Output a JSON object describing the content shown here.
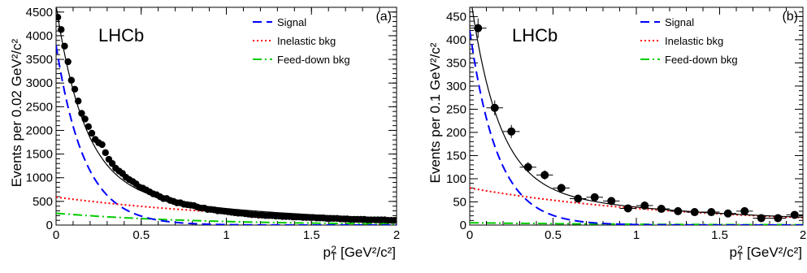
{
  "figure": {
    "name": "lhcb-pt2-fit-figure"
  },
  "chart_data": [
    {
      "type": "scatter",
      "panel_label": "(a)",
      "experiment_label": "LHCb",
      "xlabel": "p",
      "xlabel_sub": "T",
      "xlabel_sup": "2",
      "xlabel_unit": "[GeV²/c²]",
      "ylabel": "Events per 0.02 GeV²/c²",
      "xlim": [
        0,
        2
      ],
      "ylim": [
        0,
        4600
      ],
      "xticks": [
        0,
        0.5,
        1,
        1.5,
        2
      ],
      "xtick_labels": [
        "0",
        "0.5",
        "1",
        "1.5",
        "2"
      ],
      "yticks": [
        0,
        500,
        1000,
        1500,
        2000,
        2500,
        3000,
        3500,
        4000,
        4500
      ],
      "ytick_labels": [
        "0",
        "500",
        "1000",
        "1500",
        "2000",
        "2500",
        "3000",
        "3500",
        "4000",
        "4500"
      ],
      "legend": [
        "Signal",
        "Inelastic bkg",
        "Feed-down bkg"
      ],
      "legend_position": "top-right",
      "grid": false,
      "fit_model": {
        "signal": {
          "amplitude": 3800,
          "slope": 6.0
        },
        "inelastic_bkg": {
          "amplitude": 590,
          "slope": 0.8
        },
        "feed_down_bkg": {
          "amplitude": 250,
          "slope": 1.2
        }
      },
      "data_points": {
        "x": [
          0.01,
          0.03,
          0.05,
          0.07,
          0.09,
          0.11,
          0.13,
          0.15,
          0.17,
          0.19,
          0.21,
          0.23,
          0.25,
          0.27,
          0.29,
          0.31,
          0.33,
          0.35,
          0.37,
          0.39,
          0.41,
          0.43,
          0.45,
          0.47,
          0.49,
          0.51,
          0.53,
          0.55,
          0.57,
          0.59,
          0.61,
          0.63,
          0.65,
          0.67,
          0.69,
          0.71,
          0.73,
          0.75,
          0.77,
          0.79,
          0.81,
          0.83,
          0.85,
          0.87,
          0.89,
          0.91,
          0.93,
          0.95,
          0.97,
          0.99,
          1.01,
          1.03,
          1.05,
          1.07,
          1.09,
          1.11,
          1.13,
          1.15,
          1.17,
          1.19,
          1.21,
          1.23,
          1.25,
          1.27,
          1.29,
          1.31,
          1.33,
          1.35,
          1.37,
          1.39,
          1.41,
          1.43,
          1.45,
          1.47,
          1.49,
          1.51,
          1.53,
          1.55,
          1.57,
          1.59,
          1.61,
          1.63,
          1.65,
          1.67,
          1.69,
          1.71,
          1.73,
          1.75,
          1.77,
          1.79,
          1.81,
          1.83,
          1.85,
          1.87,
          1.89,
          1.91,
          1.93,
          1.95,
          1.97,
          1.99
        ],
        "y": [
          4390,
          4130,
          3780,
          3450,
          3060,
          2870,
          2620,
          2360,
          2240,
          2080,
          1940,
          1810,
          1740,
          1700,
          1530,
          1390,
          1300,
          1200,
          1140,
          1090,
          1010,
          960,
          920,
          870,
          800,
          780,
          740,
          700,
          660,
          640,
          600,
          560,
          560,
          520,
          500,
          470,
          470,
          440,
          430,
          420,
          410,
          380,
          360,
          360,
          330,
          330,
          320,
          300,
          300,
          290,
          280,
          270,
          260,
          250,
          250,
          240,
          230,
          220,
          220,
          210,
          210,
          200,
          200,
          200,
          190,
          190,
          180,
          180,
          180,
          170,
          170,
          170,
          160,
          160,
          160,
          160,
          150,
          150,
          150,
          140,
          140,
          140,
          140,
          130,
          130,
          130,
          120,
          120,
          120,
          120,
          120,
          110,
          110,
          110,
          110,
          110,
          110,
          100,
          100,
          100
        ]
      }
    },
    {
      "type": "scatter",
      "panel_label": "(b)",
      "experiment_label": "LHCb",
      "xlabel": "p",
      "xlabel_sub": "T",
      "xlabel_sup": "2",
      "xlabel_unit": "[GeV²/c²]",
      "ylabel": "Events per 0.1 GeV²/c²",
      "xlim": [
        0,
        2
      ],
      "ylim": [
        0,
        470
      ],
      "xticks": [
        0,
        0.5,
        1,
        1.5,
        2
      ],
      "xtick_labels": [
        "0",
        "0.5",
        "1",
        "1.5",
        "2"
      ],
      "yticks": [
        0,
        50,
        100,
        150,
        200,
        250,
        300,
        350,
        400,
        450
      ],
      "ytick_labels": [
        "0",
        "50",
        "100",
        "150",
        "200",
        "250",
        "300",
        "350",
        "400",
        "450"
      ],
      "legend": [
        "Signal",
        "Inelastic bkg",
        "Feed-down bkg"
      ],
      "legend_position": "top-right",
      "grid": false,
      "fit_model": {
        "signal": {
          "amplitude": 420,
          "slope": 6.0
        },
        "inelastic_bkg": {
          "amplitude": 80,
          "slope": 0.8
        },
        "feed_down_bkg": {
          "amplitude": 5,
          "slope": 1.0
        }
      },
      "data_points": {
        "x": [
          0.05,
          0.15,
          0.25,
          0.35,
          0.45,
          0.55,
          0.65,
          0.75,
          0.85,
          0.95,
          1.05,
          1.15,
          1.25,
          1.35,
          1.45,
          1.55,
          1.65,
          1.75,
          1.85,
          1.95
        ],
        "y": [
          425,
          253,
          202,
          125,
          108,
          80,
          57,
          60,
          52,
          36,
          42,
          35,
          30,
          28,
          28,
          25,
          30,
          15,
          15,
          22
        ],
        "yerr": [
          21,
          16,
          14,
          11,
          10,
          9,
          8,
          8,
          7,
          6,
          6,
          6,
          5,
          5,
          5,
          5,
          5,
          4,
          4,
          5
        ]
      }
    }
  ],
  "colors": {
    "signal": "#0000ff",
    "inelastic_bkg": "#ff0000",
    "feed_down_bkg": "#00cc00",
    "total_fit": "#000000",
    "data": "#000000",
    "inelastic_dotted": "#ff0000"
  }
}
